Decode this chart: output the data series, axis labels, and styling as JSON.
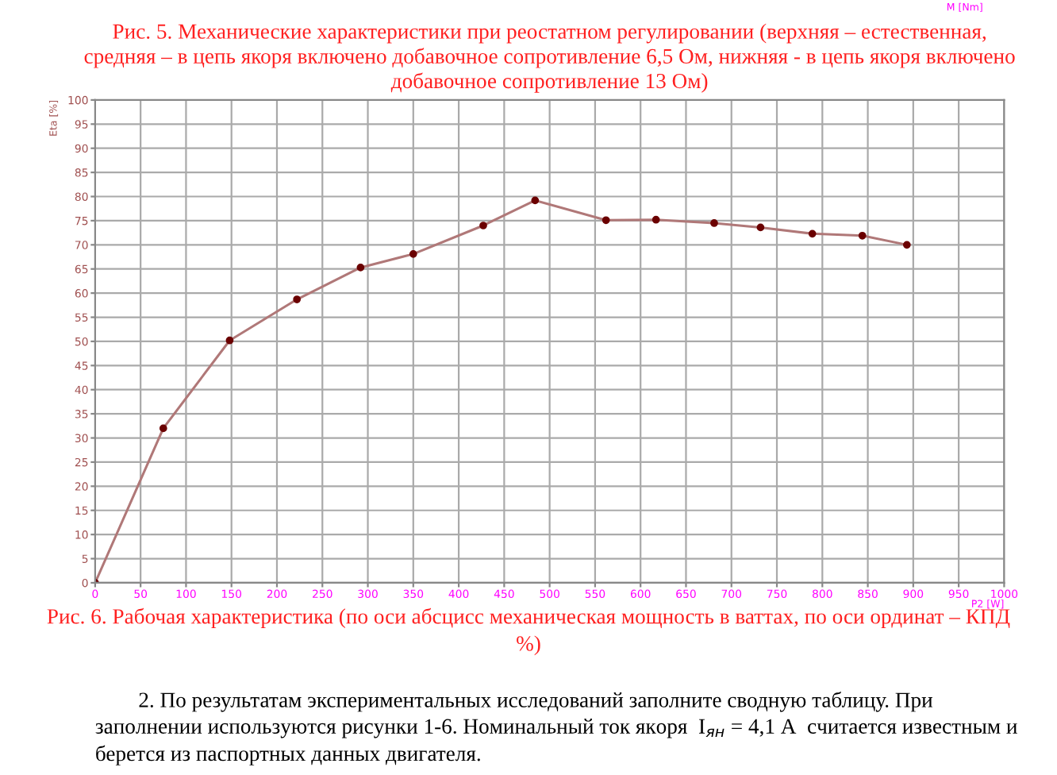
{
  "chart_data": {
    "type": "line",
    "title": "Рис. 6. Рабочая характеристика (по оси абсцисс механическая мощность в ваттах, по оси ординат – КПД\n%)",
    "xlabel": "P2 [W]",
    "ylabel": "Eta [%]",
    "annotations": [
      "M [Nm]",
      "Рис. 5. Механические характеристики при реостатном регулировании (верхняя – естественная,\nсредняя – в цепь якоря включено добавочное сопротивление 6,5 Ом, нижняя - в цепь якоря включено\nдобавочное сопротивление 13 Ом)",
      "        2. По результатам экспериментальных исследований заполните сводную таблицу. При\nзаполнении используются рисунки 1-6. Номинальный ток якоря  I$_{ян}$ = 4,1 А  считается известным и\nберется из паспортных данных двигателя."
    ],
    "x": [
      0,
      75,
      148,
      222,
      292,
      350,
      427,
      484,
      562,
      617,
      681,
      732,
      789,
      844,
      893
    ],
    "series": [
      {
        "color": "#b07878",
        "values": [
          0,
          32,
          50.2,
          58.7,
          65.3,
          68.1,
          74,
          79.2,
          75.1,
          75.2,
          74.5,
          73.6,
          72.3,
          71.9,
          70
        ]
      }
    ],
    "xlim": [
      0,
      1000
    ],
    "xticks": [
      0,
      50,
      100,
      150,
      200,
      250,
      300,
      350,
      400,
      450,
      500,
      550,
      600,
      650,
      700,
      750,
      800,
      850,
      900,
      950,
      1000
    ],
    "ylim": [
      0,
      100
    ],
    "yticks": [
      0,
      5,
      10,
      15,
      20,
      25,
      30,
      35,
      40,
      45,
      50,
      55,
      60,
      65,
      70,
      75,
      80,
      85,
      90,
      95,
      100
    ],
    "grid": true,
    "marker": "circle",
    "line_style": "solid"
  }
}
